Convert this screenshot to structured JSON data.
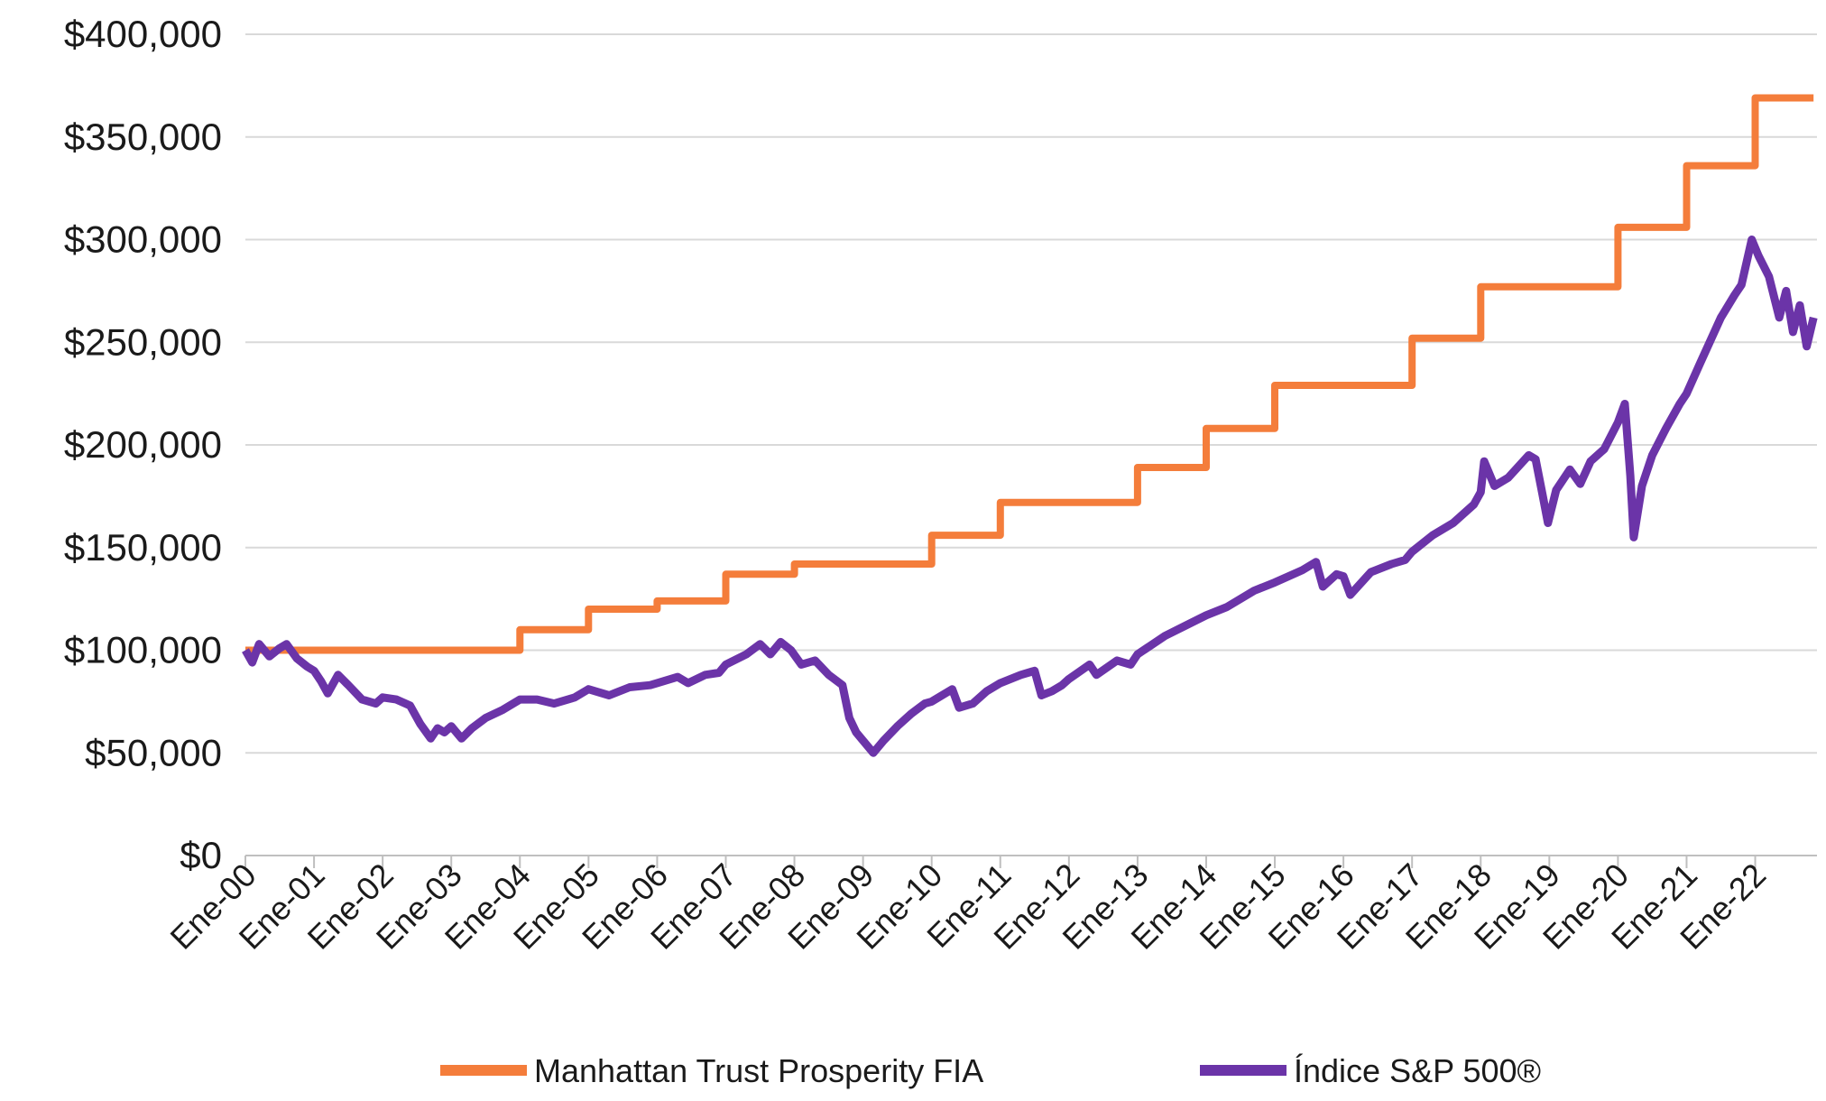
{
  "chart_data": {
    "type": "line",
    "title": "",
    "xlabel": "",
    "ylabel": "",
    "ylim": [
      0,
      400000
    ],
    "xlim": [
      2000.0,
      2022.9
    ],
    "grid": true,
    "legend_position": "bottom",
    "y_ticks": [
      {
        "value": 0,
        "label": "$0"
      },
      {
        "value": 50000,
        "label": "$50,000"
      },
      {
        "value": 100000,
        "label": "$100,000"
      },
      {
        "value": 150000,
        "label": "$150,000"
      },
      {
        "value": 200000,
        "label": "$200,000"
      },
      {
        "value": 250000,
        "label": "$250,000"
      },
      {
        "value": 300000,
        "label": "$300,000"
      },
      {
        "value": 350000,
        "label": "$350,000"
      },
      {
        "value": 400000,
        "label": "$400,000"
      }
    ],
    "x_ticks": [
      {
        "value": 2000,
        "label": "Ene-00"
      },
      {
        "value": 2001,
        "label": "Ene-01"
      },
      {
        "value": 2002,
        "label": "Ene-02"
      },
      {
        "value": 2003,
        "label": "Ene-03"
      },
      {
        "value": 2004,
        "label": "Ene-04"
      },
      {
        "value": 2005,
        "label": "Ene-05"
      },
      {
        "value": 2006,
        "label": "Ene-06"
      },
      {
        "value": 2007,
        "label": "Ene-07"
      },
      {
        "value": 2008,
        "label": "Ene-08"
      },
      {
        "value": 2009,
        "label": "Ene-09"
      },
      {
        "value": 2010,
        "label": "Ene-10"
      },
      {
        "value": 2011,
        "label": "Ene-11"
      },
      {
        "value": 2012,
        "label": "Ene-12"
      },
      {
        "value": 2013,
        "label": "Ene-13"
      },
      {
        "value": 2014,
        "label": "Ene-14"
      },
      {
        "value": 2015,
        "label": "Ene-15"
      },
      {
        "value": 2016,
        "label": "Ene-16"
      },
      {
        "value": 2017,
        "label": "Ene-17"
      },
      {
        "value": 2018,
        "label": "Ene-18"
      },
      {
        "value": 2019,
        "label": "Ene-19"
      },
      {
        "value": 2020,
        "label": "Ene-20"
      },
      {
        "value": 2021,
        "label": "Ene-21"
      },
      {
        "value": 2022,
        "label": "Ene-22"
      }
    ],
    "series": [
      {
        "name": "Manhattan Trust Prosperity FIA",
        "color": "#F47D3B",
        "step": true,
        "points": [
          [
            2000.0,
            100000
          ],
          [
            2004.0,
            110000
          ],
          [
            2005.0,
            120000
          ],
          [
            2006.0,
            124000
          ],
          [
            2007.0,
            137000
          ],
          [
            2008.0,
            142000
          ],
          [
            2010.0,
            156000
          ],
          [
            2011.0,
            172000
          ],
          [
            2013.0,
            189000
          ],
          [
            2014.0,
            208000
          ],
          [
            2015.0,
            229000
          ],
          [
            2017.0,
            252000
          ],
          [
            2018.0,
            277000
          ],
          [
            2020.0,
            306000
          ],
          [
            2021.0,
            336000
          ],
          [
            2022.0,
            369000
          ],
          [
            2022.85,
            369000
          ]
        ]
      },
      {
        "name": "Índice S&P 500®",
        "color": "#6B34A8",
        "step": false,
        "points": [
          [
            2000.0,
            100000
          ],
          [
            2000.1,
            94000
          ],
          [
            2000.2,
            103000
          ],
          [
            2000.35,
            97000
          ],
          [
            2000.5,
            101000
          ],
          [
            2000.6,
            103000
          ],
          [
            2000.75,
            96000
          ],
          [
            2000.9,
            92000
          ],
          [
            2001.0,
            90000
          ],
          [
            2001.1,
            85000
          ],
          [
            2001.2,
            79000
          ],
          [
            2001.35,
            88000
          ],
          [
            2001.5,
            83000
          ],
          [
            2001.7,
            76000
          ],
          [
            2001.9,
            74000
          ],
          [
            2002.0,
            77000
          ],
          [
            2002.2,
            76000
          ],
          [
            2002.4,
            73000
          ],
          [
            2002.55,
            64000
          ],
          [
            2002.7,
            57000
          ],
          [
            2002.8,
            62000
          ],
          [
            2002.9,
            60000
          ],
          [
            2003.0,
            63000
          ],
          [
            2003.15,
            57000
          ],
          [
            2003.3,
            62000
          ],
          [
            2003.5,
            67000
          ],
          [
            2003.75,
            71000
          ],
          [
            2004.0,
            76000
          ],
          [
            2004.25,
            76000
          ],
          [
            2004.5,
            74000
          ],
          [
            2004.8,
            77000
          ],
          [
            2005.0,
            81000
          ],
          [
            2005.3,
            78000
          ],
          [
            2005.6,
            82000
          ],
          [
            2005.9,
            83000
          ],
          [
            2006.0,
            84000
          ],
          [
            2006.3,
            87000
          ],
          [
            2006.45,
            84000
          ],
          [
            2006.7,
            88000
          ],
          [
            2006.9,
            89000
          ],
          [
            2007.0,
            93000
          ],
          [
            2007.3,
            98000
          ],
          [
            2007.5,
            103000
          ],
          [
            2007.65,
            98000
          ],
          [
            2007.8,
            104000
          ],
          [
            2007.95,
            100000
          ],
          [
            2008.1,
            93000
          ],
          [
            2008.3,
            95000
          ],
          [
            2008.5,
            88000
          ],
          [
            2008.7,
            83000
          ],
          [
            2008.8,
            67000
          ],
          [
            2008.9,
            60000
          ],
          [
            2009.0,
            56000
          ],
          [
            2009.15,
            50000
          ],
          [
            2009.3,
            56000
          ],
          [
            2009.5,
            63000
          ],
          [
            2009.7,
            69000
          ],
          [
            2009.9,
            74000
          ],
          [
            2010.0,
            75000
          ],
          [
            2010.3,
            81000
          ],
          [
            2010.4,
            72000
          ],
          [
            2010.6,
            74000
          ],
          [
            2010.8,
            80000
          ],
          [
            2011.0,
            84000
          ],
          [
            2011.3,
            88000
          ],
          [
            2011.5,
            90000
          ],
          [
            2011.6,
            78000
          ],
          [
            2011.75,
            80000
          ],
          [
            2011.9,
            83000
          ],
          [
            2012.0,
            86000
          ],
          [
            2012.3,
            93000
          ],
          [
            2012.4,
            88000
          ],
          [
            2012.7,
            95000
          ],
          [
            2012.9,
            93000
          ],
          [
            2013.0,
            98000
          ],
          [
            2013.4,
            107000
          ],
          [
            2013.7,
            112000
          ],
          [
            2014.0,
            117000
          ],
          [
            2014.3,
            121000
          ],
          [
            2014.7,
            129000
          ],
          [
            2015.0,
            133000
          ],
          [
            2015.4,
            139000
          ],
          [
            2015.6,
            143000
          ],
          [
            2015.7,
            131000
          ],
          [
            2015.9,
            137000
          ],
          [
            2016.0,
            136000
          ],
          [
            2016.1,
            127000
          ],
          [
            2016.4,
            138000
          ],
          [
            2016.7,
            142000
          ],
          [
            2016.9,
            144000
          ],
          [
            2017.0,
            148000
          ],
          [
            2017.3,
            156000
          ],
          [
            2017.6,
            162000
          ],
          [
            2017.9,
            171000
          ],
          [
            2018.0,
            177000
          ],
          [
            2018.05,
            192000
          ],
          [
            2018.2,
            180000
          ],
          [
            2018.4,
            184000
          ],
          [
            2018.7,
            195000
          ],
          [
            2018.8,
            193000
          ],
          [
            2018.9,
            176000
          ],
          [
            2018.98,
            162000
          ],
          [
            2019.1,
            178000
          ],
          [
            2019.3,
            188000
          ],
          [
            2019.45,
            181000
          ],
          [
            2019.6,
            192000
          ],
          [
            2019.8,
            198000
          ],
          [
            2020.0,
            211000
          ],
          [
            2020.1,
            220000
          ],
          [
            2020.18,
            185000
          ],
          [
            2020.23,
            155000
          ],
          [
            2020.35,
            180000
          ],
          [
            2020.5,
            195000
          ],
          [
            2020.7,
            208000
          ],
          [
            2020.9,
            220000
          ],
          [
            2021.0,
            225000
          ],
          [
            2021.2,
            240000
          ],
          [
            2021.5,
            262000
          ],
          [
            2021.7,
            273000
          ],
          [
            2021.8,
            278000
          ],
          [
            2021.95,
            300000
          ],
          [
            2022.05,
            292000
          ],
          [
            2022.2,
            282000
          ],
          [
            2022.35,
            262000
          ],
          [
            2022.45,
            275000
          ],
          [
            2022.55,
            255000
          ],
          [
            2022.65,
            268000
          ],
          [
            2022.75,
            248000
          ],
          [
            2022.85,
            262000
          ]
        ]
      }
    ]
  }
}
